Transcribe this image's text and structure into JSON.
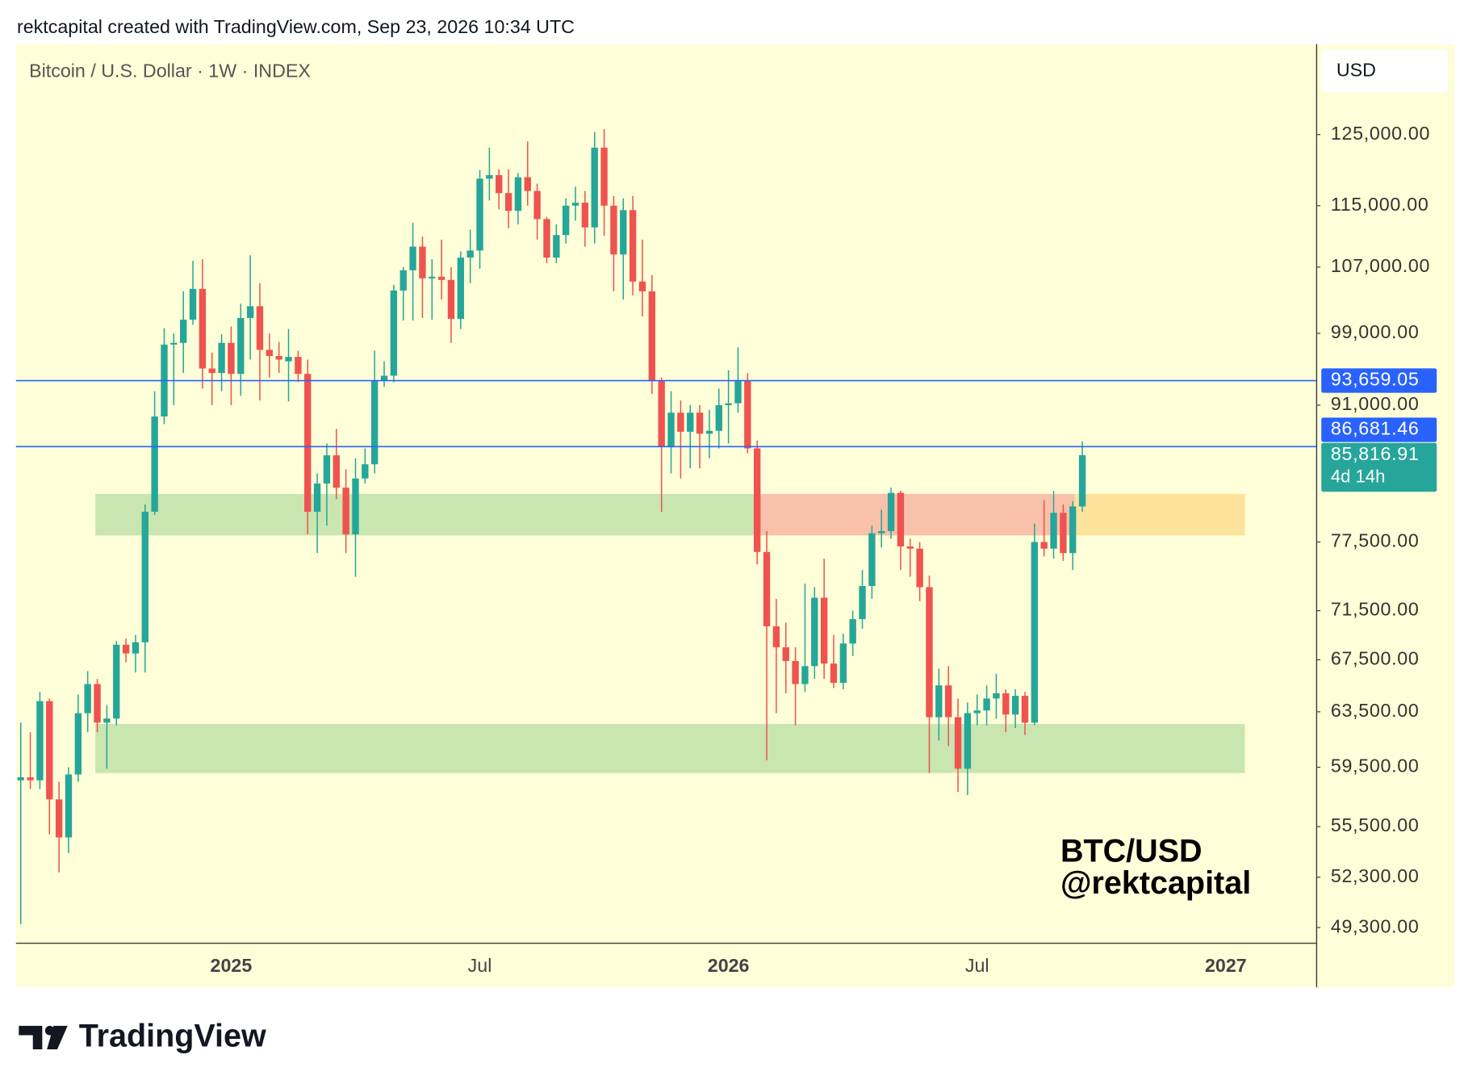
{
  "header": "rektcapital created with TradingView.com, Sep 23, 2026 10:34 UTC",
  "brand": "TradingView",
  "chart_data": {
    "type": "candlestick",
    "title": "Bitcoin / U.S. Dollar · 1W · INDEX",
    "currency": "USD",
    "categories": [
      null,
      null,
      null,
      null,
      null,
      null,
      null,
      null,
      null,
      null,
      null,
      null,
      null,
      null,
      null,
      null,
      null,
      null,
      null,
      null,
      null,
      null,
      "2025",
      null,
      null,
      null,
      null,
      null,
      null,
      null,
      null,
      null,
      null,
      null,
      null,
      null,
      null,
      null,
      null,
      null,
      null,
      null,
      null,
      null,
      null,
      null,
      null,
      null,
      "Jul",
      null,
      null,
      null,
      null,
      null,
      null,
      null,
      null,
      null,
      null,
      null,
      null,
      null,
      null,
      null,
      null,
      null,
      null,
      null,
      null,
      null,
      null,
      null,
      null,
      null,
      "2026",
      null,
      null,
      null,
      null,
      null,
      null,
      null,
      null,
      null,
      null,
      null,
      null,
      null,
      null,
      null,
      null,
      null,
      null,
      null,
      null,
      null,
      null,
      null,
      null,
      null,
      "Jul",
      null,
      null,
      null,
      null,
      null,
      null,
      null,
      null,
      null,
      null,
      null,
      null,
      null,
      null,
      null,
      null,
      null,
      null,
      null,
      null,
      null,
      null,
      null,
      null,
      null,
      "2027",
      null,
      null,
      null,
      null,
      null,
      null,
      null,
      null,
      null
    ],
    "open": [
      58600,
      58800,
      58600,
      64300,
      57300,
      54800,
      59000,
      63400,
      65600,
      62700,
      63000,
      68700,
      68000,
      68900,
      80300,
      89800,
      97700,
      97900,
      100600,
      104300,
      95000,
      94500,
      97900,
      94400,
      100800,
      102200,
      97100,
      96400,
      95800,
      96300,
      94400,
      80300,
      83000,
      85800,
      82600,
      78200,
      83500,
      84900,
      93700,
      94200,
      104100,
      106600,
      109600,
      105600,
      105800,
      105400,
      100700,
      108200,
      109100,
      118700,
      119200,
      116700,
      114300,
      118900,
      117000,
      113200,
      108200,
      111100,
      115000,
      115400,
      112100,
      123100,
      115000,
      108600,
      114400,
      105200,
      104000,
      93600,
      86700,
      90200,
      88200,
      90200,
      88000,
      88300,
      91000,
      91200,
      93600,
      86500,
      76600,
      70200,
      68500,
      67400,
      65600,
      67000,
      72600,
      67200,
      65700,
      68800,
      70800,
      73600,
      78300,
      78500,
      82100,
      77100,
      76900,
      73500,
      63100,
      65500,
      63100,
      59400,
      63400,
      63600,
      64500,
      64900,
      63300,
      64700,
      62700,
      77500,
      76900,
      80200,
      76500,
      80800,
      null,
      null,
      null,
      null,
      null,
      null,
      null,
      null,
      null,
      null,
      null,
      null,
      null,
      null,
      null,
      null,
      null,
      null,
      null,
      null,
      null,
      null,
      null,
      null
    ],
    "high": [
      62700,
      62000,
      65000,
      64500,
      58500,
      59500,
      64800,
      66600,
      66000,
      64000,
      69000,
      69200,
      69500,
      81000,
      92500,
      99600,
      99000,
      104000,
      107800,
      108000,
      96800,
      98900,
      99800,
      102500,
      108500,
      105000,
      99000,
      98000,
      99500,
      97000,
      96000,
      84000,
      87000,
      88500,
      84400,
      85500,
      86500,
      97000,
      95800,
      104800,
      107000,
      112700,
      110900,
      108000,
      110500,
      107000,
      109000,
      111800,
      119900,
      123100,
      120000,
      120000,
      119500,
      124000,
      118000,
      113500,
      112500,
      116000,
      117600,
      117000,
      125400,
      125800,
      116300,
      116000,
      116300,
      110500,
      106000,
      94000,
      92500,
      91500,
      91000,
      91000,
      90500,
      92800,
      94800,
      97400,
      94500,
      87300,
      78500,
      72500,
      70500,
      68500,
      73800,
      73500,
      76000,
      69500,
      69600,
      71500,
      75000,
      79000,
      80500,
      82600,
      82300,
      77800,
      77500,
      74500,
      66800,
      67000,
      64500,
      64200,
      64800,
      65500,
      66400,
      65200,
      65200,
      65000,
      79200,
      81400,
      82300,
      81000,
      81300,
      87200,
      null,
      null,
      null,
      null,
      null,
      null,
      null,
      null,
      null,
      null,
      null,
      null,
      null,
      null,
      null,
      null,
      null,
      null,
      null,
      null,
      null,
      null,
      null,
      null
    ],
    "low": [
      49500,
      58000,
      58000,
      55000,
      52600,
      53800,
      58500,
      62000,
      62000,
      59400,
      62500,
      67300,
      66500,
      66500,
      80000,
      89000,
      91000,
      94500,
      100000,
      92800,
      91000,
      92500,
      91000,
      92000,
      96000,
      91500,
      94000,
      94500,
      91400,
      93500,
      78200,
      76500,
      79000,
      81500,
      76500,
      74400,
      83000,
      84000,
      93000,
      93500,
      100500,
      100500,
      100800,
      100600,
      103000,
      97900,
      99500,
      105000,
      106800,
      115700,
      114500,
      112000,
      112500,
      115000,
      110500,
      107500,
      107500,
      110000,
      113000,
      109600,
      110000,
      111000,
      104000,
      103000,
      103500,
      101000,
      92200,
      80300,
      84000,
      83500,
      84500,
      84500,
      85500,
      86500,
      87000,
      90200,
      86000,
      75500,
      60000,
      63400,
      64900,
      62500,
      65000,
      66000,
      66000,
      65300,
      65200,
      67800,
      70000,
      72500,
      77000,
      77800,
      75000,
      74400,
      72300,
      59100,
      61400,
      61000,
      57800,
      57600,
      62500,
      62500,
      63000,
      62000,
      62300,
      61800,
      62500,
      76200,
      76000,
      75800,
      75000,
      80300,
      null,
      null,
      null,
      null,
      null,
      null,
      null,
      null,
      null,
      null,
      null,
      null,
      null,
      null,
      null,
      null,
      null,
      null,
      null,
      null,
      null,
      null,
      null,
      null
    ],
    "close": [
      58800,
      58600,
      64300,
      57300,
      54800,
      59000,
      63400,
      65600,
      62700,
      63000,
      68700,
      68000,
      68900,
      80300,
      89800,
      97700,
      97900,
      100600,
      104300,
      95000,
      94500,
      97900,
      94400,
      100800,
      102200,
      97100,
      96400,
      96000,
      96300,
      94400,
      80300,
      83000,
      85800,
      82600,
      78200,
      83500,
      84900,
      93700,
      94200,
      104100,
      106600,
      109600,
      105600,
      105800,
      105400,
      100700,
      108200,
      109100,
      118700,
      119200,
      116700,
      114300,
      118900,
      117000,
      113200,
      108200,
      111100,
      115000,
      115400,
      112100,
      123100,
      115000,
      108600,
      114400,
      105200,
      104000,
      93600,
      86700,
      90200,
      88200,
      90200,
      88000,
      88300,
      91000,
      91200,
      93600,
      86500,
      76600,
      70200,
      68500,
      67400,
      65600,
      67000,
      72600,
      67200,
      65700,
      68800,
      70800,
      73600,
      78300,
      78500,
      82100,
      77100,
      76900,
      73500,
      63100,
      65500,
      63100,
      59400,
      63400,
      63600,
      64500,
      64900,
      63300,
      64700,
      62700,
      77500,
      76900,
      80200,
      76500,
      80800,
      85816.91,
      null,
      null,
      null,
      null,
      null,
      null,
      null,
      null,
      null,
      null,
      null,
      null,
      null,
      null,
      null,
      null,
      null,
      null,
      null,
      null,
      null,
      null,
      null,
      null
    ],
    "last_label": "85,816.91",
    "countdown": "4d 14h",
    "up_color": "#26a69a",
    "down_color": "#ef5350",
    "log_scale": true,
    "grid": false,
    "ylim": [
      48400,
      139000
    ],
    "yticks": [
      {
        "value": 125000,
        "label": "125,000.00"
      },
      {
        "value": 115000,
        "label": "115,000.00"
      },
      {
        "value": 107000,
        "label": "107,000.00"
      },
      {
        "value": 99000,
        "label": "99,000.00"
      },
      {
        "value": 91000,
        "label": "91,000.00"
      },
      {
        "value": 77500,
        "label": "77,500.00"
      },
      {
        "value": 71500,
        "label": "71,500.00"
      },
      {
        "value": 67500,
        "label": "67,500.00"
      },
      {
        "value": 63500,
        "label": "63,500.00"
      },
      {
        "value": 59500,
        "label": "59,500.00"
      },
      {
        "value": 55500,
        "label": "55,500.00"
      },
      {
        "value": 52300,
        "label": "52,300.00"
      },
      {
        "value": 49300,
        "label": "49,300.00"
      }
    ],
    "lines": [
      {
        "value": 93659.05,
        "label": "93,659.05",
        "color": "#2962ff"
      },
      {
        "value": 86681.46,
        "label": "86,681.46",
        "color": "#2962ff"
      }
    ],
    "zones": [
      {
        "low": 78100,
        "high": 82000,
        "start": 7.8,
        "end": 76.9,
        "color": "#c9e5b0"
      },
      {
        "low": 78100,
        "high": 82000,
        "start": 76.9,
        "end": 110.2,
        "color": "#f9c1a9"
      },
      {
        "low": 78100,
        "high": 82000,
        "start": 110.2,
        "end": 128,
        "color": "#fde29b"
      },
      {
        "low": 59100,
        "high": 62600,
        "start": 7.8,
        "end": 128,
        "color": "#c9e5b0"
      }
    ],
    "annotations": [
      "BTC/USD",
      "@rektcapital"
    ]
  }
}
